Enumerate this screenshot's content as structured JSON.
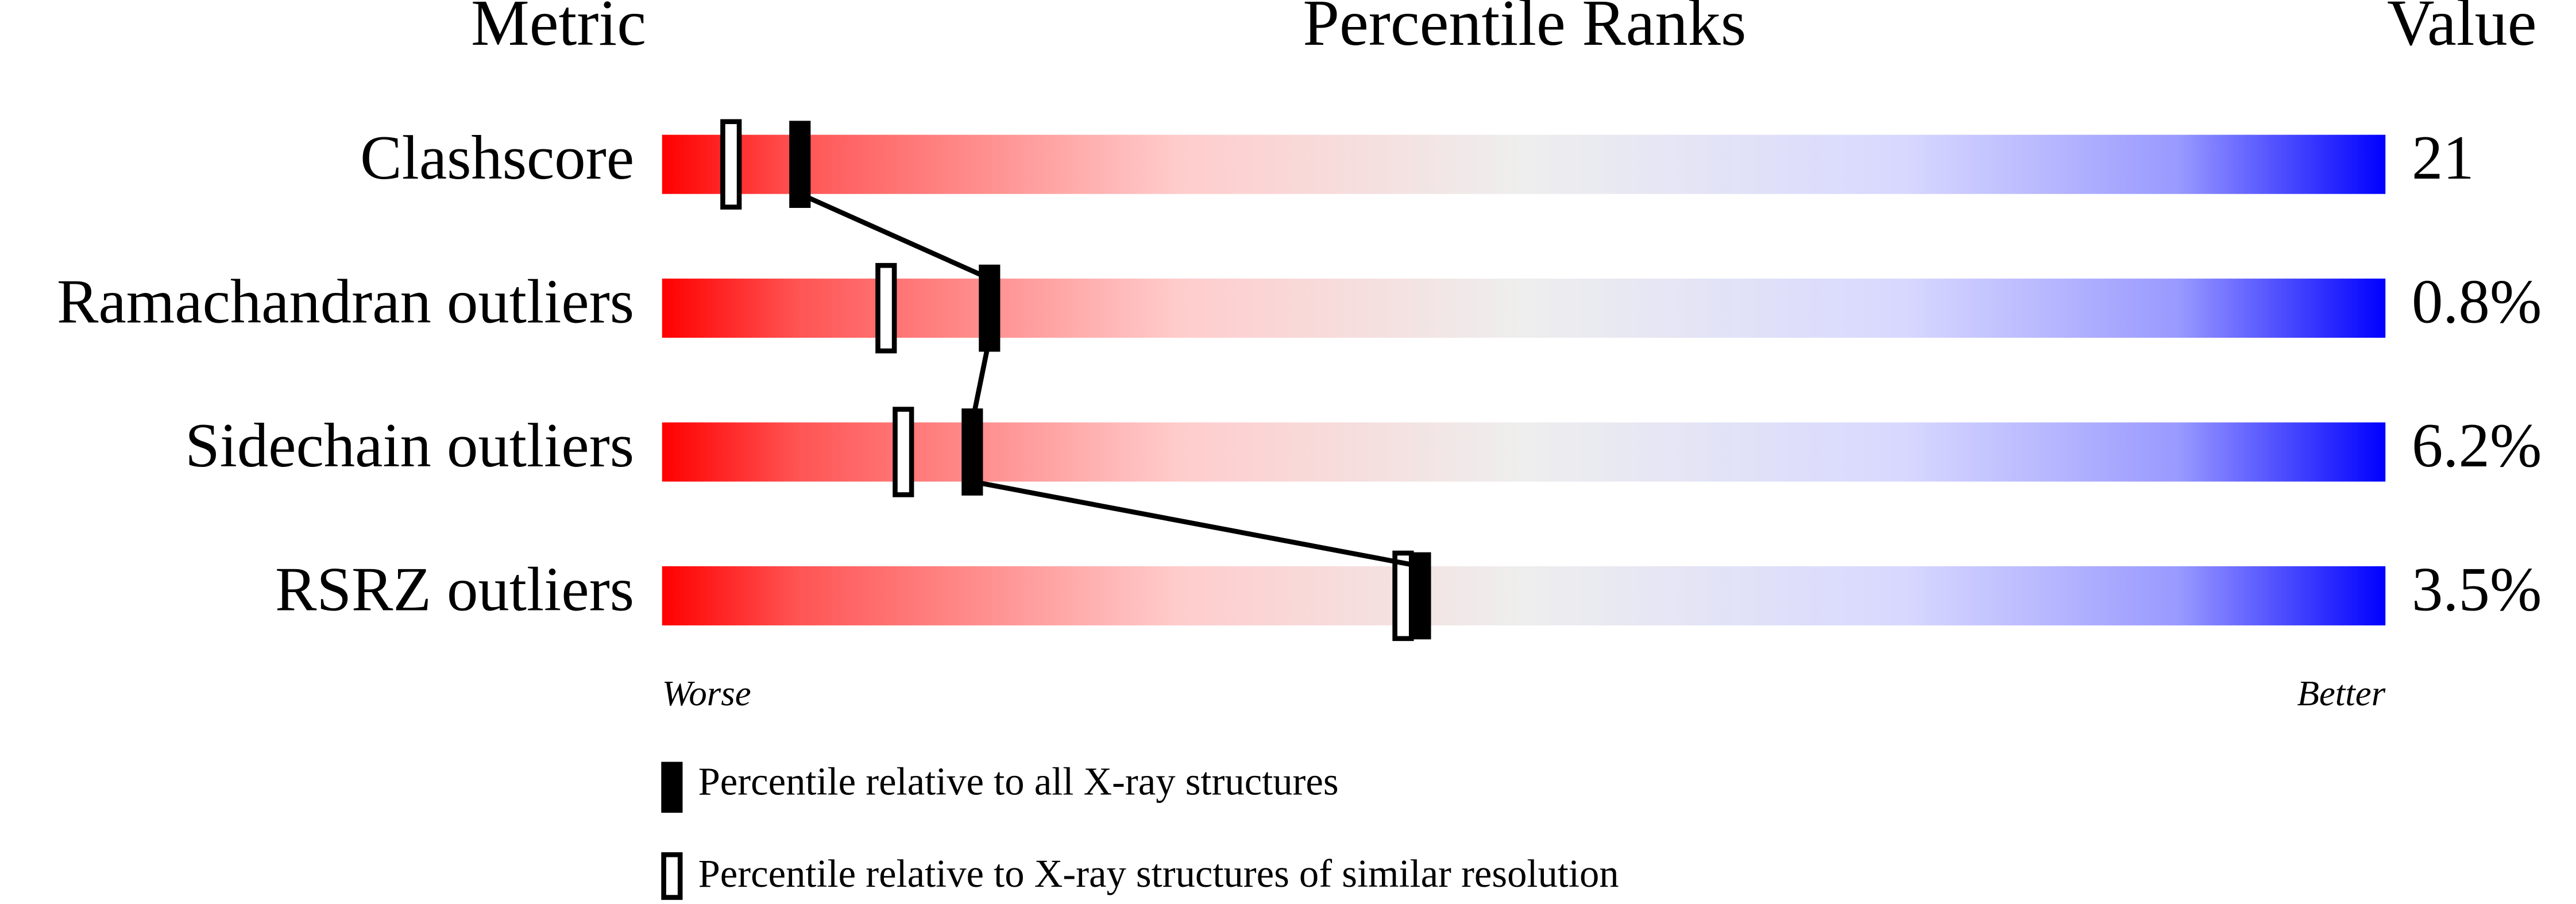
{
  "chart_data": {
    "type": "percentile-slider",
    "headers": {
      "metric": "Metric",
      "ranks": "Percentile Ranks",
      "value": "Value"
    },
    "categories": [
      "Clashscore",
      "Ramachandran outliers",
      "Sidechain outliers",
      "RSRZ outliers"
    ],
    "value_column": [
      "21",
      "0.8%",
      "6.2%",
      "3.5%"
    ],
    "series": [
      {
        "name": "Percentile relative to all X-ray structures",
        "style": "filled",
        "color": "#000000",
        "values": [
          8,
          19,
          18,
          44
        ]
      },
      {
        "name": "Percentile relative to X-ray structures of similar resolution",
        "style": "open",
        "color": "#000000",
        "values": [
          4,
          13,
          14,
          43
        ]
      }
    ],
    "xlim": [
      0,
      100
    ],
    "scale_labels": {
      "low": "Worse",
      "high": "Better"
    },
    "connect": "filled"
  }
}
